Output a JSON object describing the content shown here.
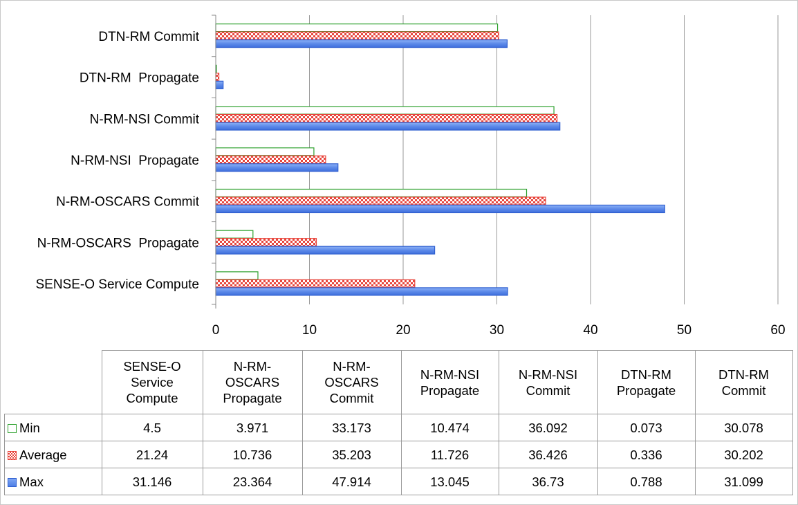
{
  "chart_data": {
    "type": "bar",
    "orientation": "horizontal",
    "categories": [
      "SENSE-O Service Compute",
      "N-RM-OSCARS  Propagate",
      "N-RM-OSCARS Commit",
      "N-RM-NSI  Propagate",
      "N-RM-NSI Commit",
      "DTN-RM  Propagate",
      "DTN-RM Commit"
    ],
    "series": [
      {
        "name": "Min",
        "values": [
          4.5,
          3.971,
          33.173,
          10.474,
          36.092,
          0.073,
          30.078
        ],
        "color": "#2ca02c"
      },
      {
        "name": "Average",
        "values": [
          21.24,
          10.736,
          35.203,
          11.726,
          36.426,
          0.336,
          30.202
        ],
        "color": "#e8453c"
      },
      {
        "name": "Max",
        "values": [
          31.146,
          23.364,
          47.914,
          13.045,
          36.73,
          0.788,
          31.099
        ],
        "color": "#4f7fe6"
      }
    ],
    "xlim": [
      0,
      60
    ],
    "xticks": [
      "0",
      "10",
      "20",
      "30",
      "40",
      "50",
      "60"
    ],
    "grid": true,
    "legend": "data table below chart",
    "title": "",
    "xlabel": "",
    "ylabel": ""
  },
  "table": {
    "headers": [
      [
        "SENSE-O",
        "Service",
        "Compute"
      ],
      [
        "N-RM-",
        "OSCARS",
        "Propagate"
      ],
      [
        "N-RM-",
        "OSCARS",
        "Commit"
      ],
      [
        "N-RM-NSI",
        "Propagate"
      ],
      [
        "N-RM-NSI",
        "Commit"
      ],
      [
        "DTN-RM",
        "Propagate"
      ],
      [
        "DTN-RM",
        "Commit"
      ]
    ],
    "rows": [
      {
        "label": "Min",
        "swatch": "min",
        "values": [
          "4.5",
          "3.971",
          "33.173",
          "10.474",
          "36.092",
          "0.073",
          "30.078"
        ]
      },
      {
        "label": "Average",
        "swatch": "avg",
        "values": [
          "21.24",
          "10.736",
          "35.203",
          "11.726",
          "36.426",
          "0.336",
          "30.202"
        ]
      },
      {
        "label": "Max",
        "swatch": "max",
        "values": [
          "31.146",
          "23.364",
          "47.914",
          "13.045",
          "36.73",
          "0.788",
          "31.099"
        ]
      }
    ]
  }
}
